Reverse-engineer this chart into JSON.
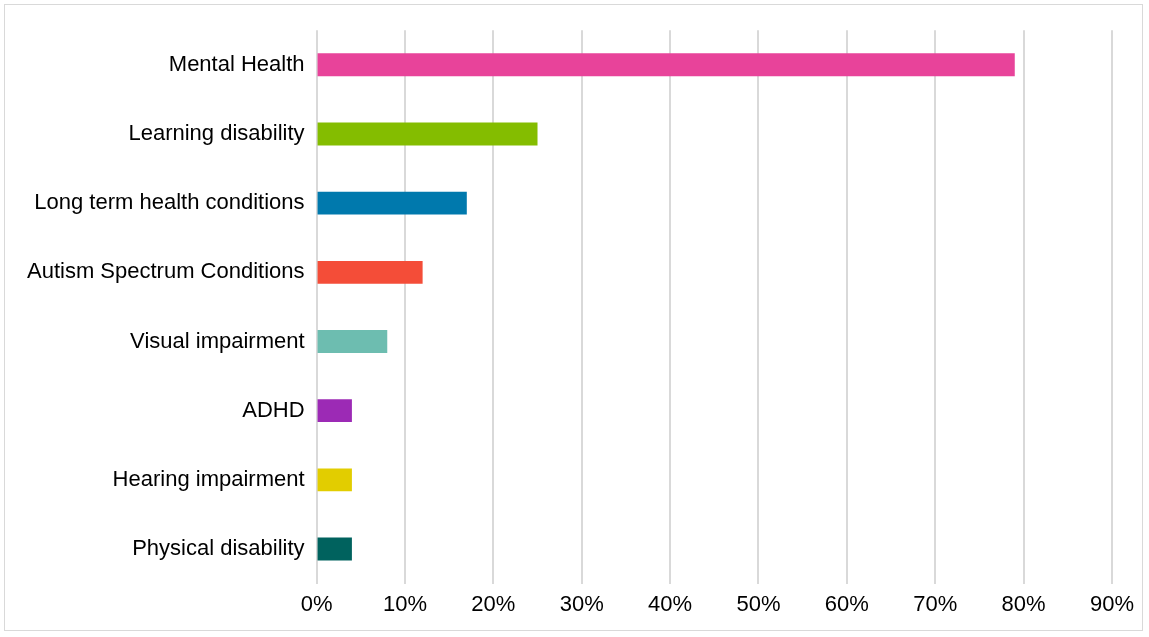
{
  "chart_data": {
    "type": "bar",
    "orientation": "horizontal",
    "categories": [
      "Mental Health",
      "Learning disability",
      "Long term health conditions",
      "Autism Spectrum Conditions",
      "Visual impairment",
      "ADHD",
      "Hearing impairment",
      "Physical disability"
    ],
    "values": [
      79,
      25,
      17,
      12,
      8,
      4,
      4,
      4
    ],
    "colors": [
      "#e8439a",
      "#84bd00",
      "#0079ad",
      "#f44d38",
      "#6dbdb0",
      "#9c2ab5",
      "#e2cd00",
      "#00625e"
    ],
    "xlim": [
      0,
      90
    ],
    "xticks": [
      {
        "value": 0,
        "label": "0%"
      },
      {
        "value": 10,
        "label": "10%"
      },
      {
        "value": 20,
        "label": "20%"
      },
      {
        "value": 30,
        "label": "30%"
      },
      {
        "value": 40,
        "label": "40%"
      },
      {
        "value": 50,
        "label": "50%"
      },
      {
        "value": 60,
        "label": "60%"
      },
      {
        "value": 70,
        "label": "70%"
      },
      {
        "value": 80,
        "label": "80%"
      },
      {
        "value": 90,
        "label": "90%"
      }
    ],
    "grid": "x"
  }
}
